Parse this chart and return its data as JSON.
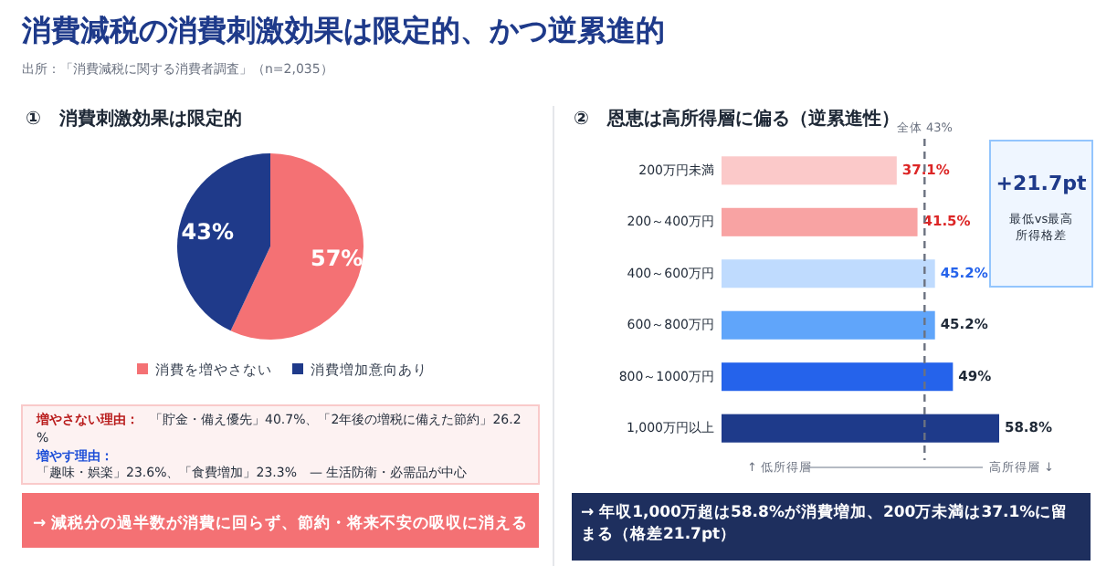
{
  "chart_data": [
    {
      "type": "pie",
      "title": "消費減税の消費刺激効果は限定的、かつ逆累進的",
      "subtitle": "①　消費刺激効果は限定的",
      "categories": [
        "消費を増やさない",
        "消費増加意向あり"
      ],
      "values": [
        57,
        43
      ],
      "value_labels": [
        "57%",
        "43%"
      ],
      "colors": [
        "#f47174",
        "#1f3a8a"
      ],
      "data_labels": true,
      "legend": "bottom",
      "annotations": [
        "出所：「消費減税に関する消費者調査」（n=2,035）",
        "増やさない理由：",
        "「貯金・備え優先」40.7%、「2年後の増税に備えた節約」26.2%",
        "増やす理由：",
        "「趣味・娯楽」23.6%、「食費増加」23.3%　— 生活防衛・必需品が中心",
        "→ 減税分の過半数が消費に回らず、節約・将来不安の吸収に消える"
      ]
    },
    {
      "type": "bar",
      "orientation": "horizontal",
      "title": "②　恩恵は高所得層に偏る（逆累進性）",
      "categories": [
        "200万円未満",
        "200～400万円",
        "400～600万円",
        "600～800万円",
        "800～1000万円",
        "1,000万円以上"
      ],
      "values": [
        37.1,
        41.5,
        45.2,
        45.2,
        49,
        58.8
      ],
      "value_labels": [
        "37.1%",
        "41.5%",
        "45.2%",
        "45.2%",
        "49%",
        "58.8%"
      ],
      "colors": [
        "#fbc9c9",
        "#f8a3a3",
        "#bfdbfe",
        "#60a5fa",
        "#2563eb",
        "#1e3a8a"
      ],
      "tick_labels": "y",
      "ref_lines": [
        {
          "axis": "x",
          "value": 43,
          "label": "全体 43%",
          "line_style": "dashed",
          "color": "#6b7280"
        }
      ],
      "annotations": [
        "+21.7pt",
        "最低vs最高所得格差",
        "↑ 低所得層",
        "高所得層 ↓",
        "→ 年収1,000万超は58.8%が消費増加、200万未満は37.1%に留まる（格差21.7pt）"
      ]
    }
  ]
}
